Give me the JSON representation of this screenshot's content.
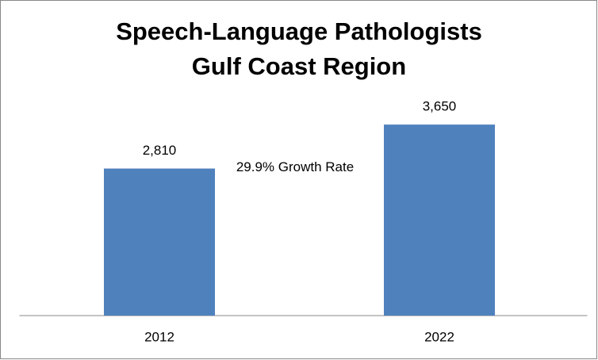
{
  "chart_data": {
    "type": "bar",
    "title": "Speech-Language Pathologists Gulf Coast Region",
    "categories": [
      "2012",
      "2022"
    ],
    "values": [
      2810,
      3650
    ],
    "value_labels": [
      "2,810",
      "3,650"
    ],
    "color": "#4f81bd",
    "ylim": [
      0,
      4000
    ],
    "annotation": "29.9% Growth Rate"
  }
}
